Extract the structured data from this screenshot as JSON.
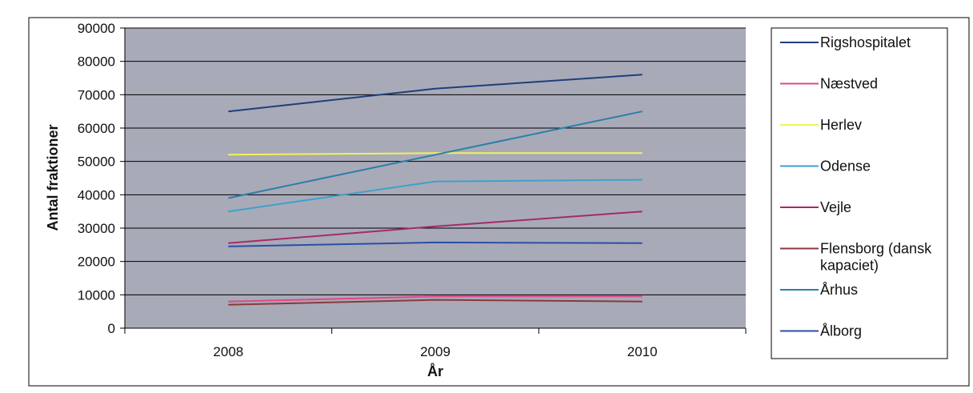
{
  "chart_data": {
    "type": "line",
    "title": "",
    "xlabel": "År",
    "ylabel": "Antal fraktioner",
    "x": [
      "2008",
      "2009",
      "2010"
    ],
    "ylim": [
      0,
      90000
    ],
    "yticks": [
      "0",
      "10000",
      "20000",
      "30000",
      "40000",
      "50000",
      "60000",
      "70000",
      "80000",
      "90000"
    ],
    "grid": true,
    "legend_position": "right",
    "plot_background": "#a8aab8",
    "series": [
      {
        "name": "Rigshospitalet",
        "color": "#1e3f7a",
        "values": [
          65000,
          71800,
          76000
        ]
      },
      {
        "name": "Næstved",
        "color": "#e0488a",
        "values": [
          8000,
          9500,
          9500
        ]
      },
      {
        "name": "Herlev",
        "color": "#f2f25a",
        "values": [
          52000,
          52500,
          52500
        ]
      },
      {
        "name": "Odense",
        "color": "#3fa0cc",
        "values": [
          35000,
          44000,
          44500
        ]
      },
      {
        "name": "Vejle",
        "color": "#a52a6a",
        "values": [
          25500,
          30500,
          35000
        ]
      },
      {
        "name": "Flensborg (dansk kapaciet)",
        "color": "#8a3a3a",
        "values": [
          7000,
          8500,
          8000
        ]
      },
      {
        "name": "Århus",
        "color": "#2a7faa",
        "values": [
          39000,
          52000,
          65000
        ]
      },
      {
        "name": "Ålborg",
        "color": "#2a4fa5",
        "values": [
          24500,
          25700,
          25500
        ]
      }
    ]
  }
}
